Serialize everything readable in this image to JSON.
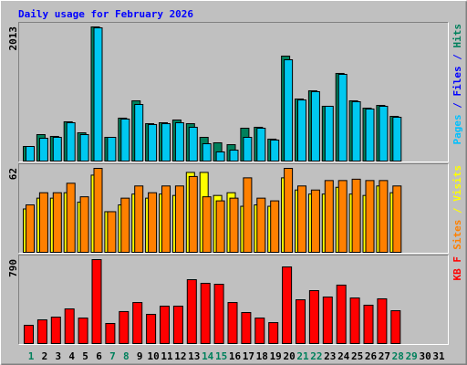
{
  "chart_data": [
    {
      "type": "bar",
      "title": "Daily usage for February 2026",
      "ylim": [
        0,
        2013
      ],
      "yticks": [
        2013
      ],
      "right_label": [
        {
          "text": "Pages",
          "color": "#00c0ff"
        },
        {
          "text": " / ",
          "color": "#0000ff"
        },
        {
          "text": "Files",
          "color": "#0000ff"
        },
        {
          "text": " / ",
          "color": "#0000ff"
        },
        {
          "text": "Hits",
          "color": "#00805c"
        }
      ],
      "series": [
        {
          "name": "Hits",
          "color": "#00805c",
          "values": [
            219,
            397,
            370,
            589,
            424,
            2013,
            356,
            644,
            904,
            561,
            575,
            616,
            561,
            356,
            274,
            246,
            493,
            507,
            329,
            1575,
            931,
            1054,
            822,
            1315,
            904,
            794,
            835,
            671,
            null,
            null,
            null
          ]
        },
        {
          "name": "Pages",
          "color": "#00c8f0",
          "values": [
            219,
            342,
            356,
            575,
            397,
            1999,
            356,
            630,
            849,
            548,
            561,
            575,
            507,
            260,
            137,
            164,
            356,
            493,
            315,
            1520,
            917,
            1041,
            822,
            1301,
            890,
            781,
            822,
            657,
            null,
            null,
            null
          ]
        }
      ]
    },
    {
      "type": "bar",
      "ylim": [
        0,
        62
      ],
      "yticks": [
        62
      ],
      "right_label": [
        {
          "text": "Sites",
          "color": "#ff8000"
        },
        {
          "text": " / ",
          "color": "#ffff00"
        },
        {
          "text": "Visits",
          "color": "#ffff00"
        }
      ],
      "series": [
        {
          "name": "Visits",
          "color": "#ffff00",
          "values": [
            32,
            40,
            40,
            44,
            37,
            57,
            30,
            35,
            43,
            40,
            43,
            42,
            59,
            59,
            42,
            44,
            34,
            35,
            34,
            55,
            46,
            43,
            43,
            48,
            43,
            42,
            49,
            44,
            null,
            null,
            null
          ]
        },
        {
          "name": "Sites",
          "color": "#ff8000",
          "values": [
            35,
            44,
            44,
            51,
            41,
            62,
            30,
            40,
            49,
            44,
            49,
            49,
            56,
            41,
            38,
            40,
            55,
            40,
            38,
            62,
            49,
            46,
            53,
            53,
            54,
            53,
            53,
            49,
            null,
            null,
            null
          ]
        }
      ]
    },
    {
      "type": "bar",
      "ylim": [
        0,
        790
      ],
      "yticks": [
        790
      ],
      "right_label": [
        {
          "text": "KB F",
          "color": "#ff0000"
        }
      ],
      "series": [
        {
          "name": "KB F",
          "color": "#ff0000",
          "values": [
            172,
            223,
            249,
            326,
            240,
            790,
            189,
            301,
            386,
            275,
            352,
            352,
            601,
            567,
            558,
            386,
            292,
            240,
            197,
            721,
            412,
            498,
            438,
            550,
            429,
            361,
            421,
            309,
            null,
            null,
            null
          ]
        }
      ],
      "categories": [
        "1",
        "2",
        "3",
        "4",
        "5",
        "6",
        "7",
        "8",
        "9",
        "10",
        "11",
        "12",
        "13",
        "14",
        "15",
        "16",
        "17",
        "18",
        "19",
        "20",
        "21",
        "22",
        "23",
        "24",
        "25",
        "26",
        "27",
        "28",
        "29",
        "30",
        "31"
      ],
      "category_colors": [
        "#00805c",
        "#000000",
        "#000000",
        "#000000",
        "#000000",
        "#000000",
        "#00805c",
        "#00805c",
        "#000000",
        "#000000",
        "#000000",
        "#000000",
        "#000000",
        "#00805c",
        "#00805c",
        "#000000",
        "#000000",
        "#000000",
        "#000000",
        "#000000",
        "#00805c",
        "#00805c",
        "#000000",
        "#000000",
        "#000000",
        "#000000",
        "#000000",
        "#00805c",
        "#00805c",
        "#000000",
        "#000000"
      ]
    }
  ]
}
